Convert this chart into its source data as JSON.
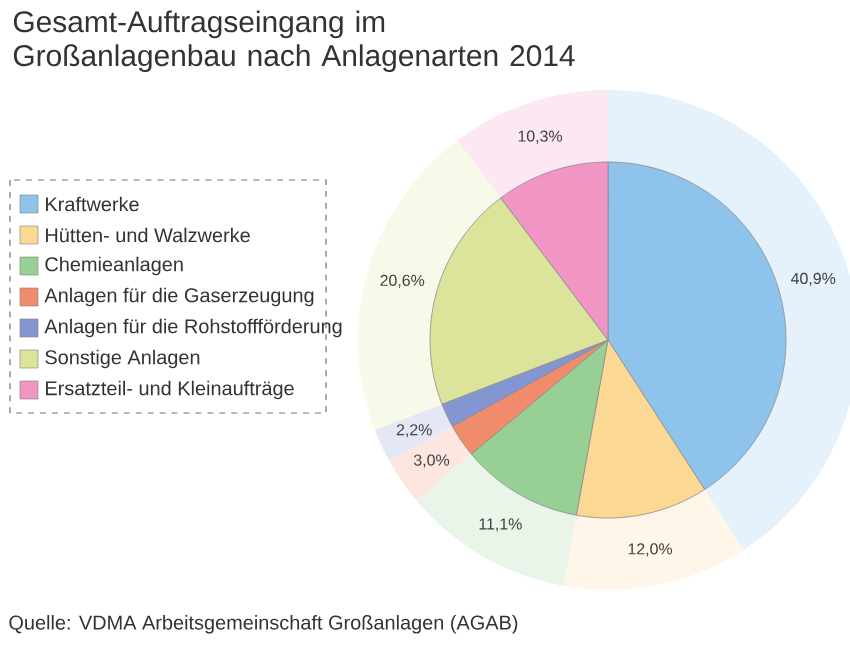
{
  "chart_data": {
    "type": "pie",
    "title": "Gesamt-Auftragseingang im Großanlagenbau nach Anlagenarten 2014",
    "categories": [
      "Kraftwerke",
      "Hütten- und Walzwerke",
      "Chemieanlagen",
      "Anlagen für die Gaserzeugung",
      "Anlagen für die Rohstoffförderung",
      "Sonstige Anlagen",
      "Ersatzteil- und Kleinaufträge"
    ],
    "values": [
      40.9,
      12.0,
      11.1,
      3.0,
      2.2,
      20.6,
      10.3
    ],
    "value_labels": [
      "40,9%",
      "12,0%",
      "11,1%",
      "3,0%",
      "2,2%",
      "20,6%",
      "10,3%"
    ],
    "colors": [
      "#8ec4ec",
      "#fcd895",
      "#98cf94",
      "#f08c6c",
      "#8496d2",
      "#dce39a",
      "#f095c4"
    ],
    "legend": "top left",
    "annotations": [
      "Quelle: VDMA Arbeitsgemeinschaft Großanlagen (AGAB)"
    ]
  }
}
